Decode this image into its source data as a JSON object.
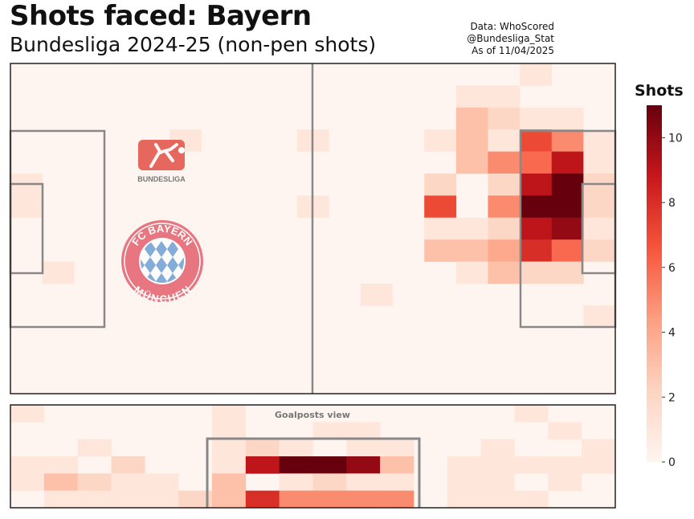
{
  "header": {
    "title": "Shots faced: Bayern",
    "subtitle": "Bundesliga 2024-25 (non-pen shots)",
    "credits": [
      "Data: WhoScored",
      "@Bundesliga_Stat",
      "As of 11/04/2025"
    ]
  },
  "logos": {
    "league_text": "BUNDESLIGA",
    "club_text_top": "FC BAYERN",
    "club_text_bottom": "MÜNCHEN"
  },
  "colors": {
    "pitch_line": "#888888",
    "border": "#222222",
    "bg_cell": "#fff5f0",
    "club_red": "#e3616e",
    "club_blue": "#6fa0d6",
    "league_red": "#e0443a"
  },
  "chart_data": [
    {
      "type": "heatmap",
      "title": "Shots faced: Bayern",
      "subtitle": "Bundesliga 2024-25 (non-pen shots)",
      "description_units": "shot counts per zone, grid of 19 columns (goal at right edge) x 15 rows",
      "colorbar": {
        "label": "Shots",
        "min": 0,
        "max": 11,
        "ticks": [
          0,
          2,
          4,
          6,
          8,
          10
        ],
        "cmap": "Reds"
      },
      "rows": 15,
      "cols": 19,
      "values": [
        [
          0,
          0,
          0,
          0,
          0,
          0,
          0,
          0,
          0,
          0,
          0,
          0,
          0,
          0,
          0,
          0,
          1,
          0,
          0
        ],
        [
          0,
          0,
          0,
          0,
          0,
          0,
          0,
          0,
          0,
          0,
          0,
          0,
          0,
          0,
          1,
          1,
          0,
          0,
          0
        ],
        [
          0,
          0,
          0,
          0,
          0,
          0,
          0,
          0,
          0,
          0,
          0,
          0,
          0,
          0,
          3,
          2,
          1,
          1,
          0
        ],
        [
          0,
          0,
          0,
          0,
          0,
          1,
          0,
          0,
          0,
          1,
          0,
          0,
          0,
          1,
          3,
          1,
          7,
          5,
          1
        ],
        [
          0,
          0,
          0,
          0,
          0,
          0,
          0,
          0,
          0,
          0,
          0,
          0,
          0,
          0,
          3,
          5,
          6,
          9,
          1
        ],
        [
          1,
          0,
          0,
          0,
          0,
          0,
          0,
          0,
          0,
          0,
          0,
          0,
          0,
          2,
          0,
          2,
          9,
          11,
          2
        ],
        [
          1,
          0,
          0,
          0,
          0,
          0,
          0,
          0,
          0,
          1,
          0,
          0,
          0,
          7,
          0,
          5,
          11,
          11,
          2
        ],
        [
          0,
          0,
          0,
          0,
          0,
          0,
          0,
          0,
          0,
          0,
          0,
          0,
          0,
          1,
          1,
          2,
          9,
          10,
          1
        ],
        [
          0,
          0,
          0,
          0,
          0,
          0,
          0,
          0,
          0,
          0,
          0,
          0,
          0,
          3,
          3,
          4,
          8,
          6,
          2
        ],
        [
          0,
          1,
          0,
          0,
          0,
          0,
          0,
          0,
          0,
          0,
          0,
          0,
          0,
          0,
          1,
          3,
          2,
          2,
          0
        ],
        [
          0,
          0,
          0,
          0,
          0,
          0,
          0,
          0,
          0,
          0,
          0,
          1,
          0,
          0,
          0,
          0,
          0,
          0,
          0
        ],
        [
          0,
          0,
          0,
          0,
          0,
          0,
          0,
          0,
          0,
          0,
          0,
          0,
          0,
          0,
          0,
          0,
          0,
          0,
          1
        ],
        [
          0,
          0,
          0,
          0,
          0,
          0,
          0,
          0,
          0,
          0,
          0,
          0,
          0,
          0,
          0,
          0,
          0,
          0,
          0
        ],
        [
          0,
          0,
          0,
          0,
          0,
          0,
          0,
          0,
          0,
          0,
          0,
          0,
          0,
          0,
          0,
          0,
          0,
          0,
          0
        ],
        [
          0,
          0,
          0,
          0,
          0,
          0,
          0,
          0,
          0,
          0,
          0,
          0,
          0,
          0,
          0,
          0,
          0,
          0,
          0
        ]
      ]
    },
    {
      "type": "heatmap",
      "title": "Goalposts view",
      "description_units": "shot counts per zone of the goal-mouth view, 18 columns x 5 rows",
      "rows": 5,
      "cols": 18,
      "values": [
        [
          1,
          0,
          0,
          0,
          0,
          0,
          1,
          0,
          0,
          0,
          0,
          0,
          0,
          0,
          0,
          1,
          0,
          0
        ],
        [
          0,
          0,
          0,
          0,
          0,
          0,
          1,
          0,
          0,
          1,
          1,
          0,
          0,
          0,
          0,
          0,
          1,
          0
        ],
        [
          0,
          0,
          1,
          0,
          0,
          0,
          1,
          2,
          1,
          0,
          1,
          1,
          0,
          0,
          1,
          0,
          0,
          1
        ],
        [
          1,
          1,
          0,
          2,
          0,
          0,
          1,
          9,
          11,
          11,
          10,
          3,
          0,
          1,
          1,
          1,
          1,
          1
        ],
        [
          1,
          3,
          2,
          1,
          1,
          0,
          3,
          0,
          1,
          2,
          1,
          1,
          0,
          1,
          1,
          0,
          1,
          0
        ]
      ]
    }
  ],
  "goal_view_bottom_row": [
    0,
    1,
    1,
    1,
    1,
    2,
    3,
    8,
    5,
    5,
    5,
    5,
    0,
    1,
    1,
    1,
    0,
    0
  ]
}
